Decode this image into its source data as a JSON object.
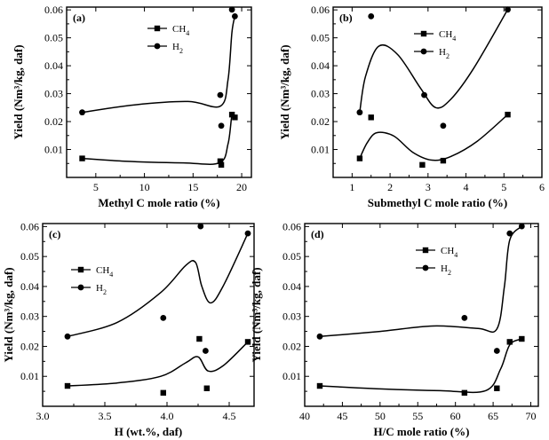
{
  "chart_data": [
    {
      "type": "scatter",
      "panel_label": "(a)",
      "xlabel": "Methyl C mole ratio (%)",
      "ylabel": "Yield",
      "ylabel_unit": "(Nm³/kg, daf)",
      "xlim": [
        2,
        21
      ],
      "ylim": [
        0,
        0.061
      ],
      "xticks": [
        5,
        10,
        15,
        20
      ],
      "xticklabels": [
        "5",
        "10",
        "15",
        "20"
      ],
      "yticks": [
        0.01,
        0.02,
        0.03,
        0.04,
        0.05,
        0.06
      ],
      "yticklabels": [
        "0.01",
        "0.02",
        "0.03",
        "0.04",
        "0.05",
        "0.06"
      ],
      "legend_position": "top-right",
      "series": [
        {
          "name": "CH",
          "sub": "4",
          "marker": "square",
          "points": [
            [
              3.6,
              0.0068
            ],
            [
              17.8,
              0.0058
            ],
            [
              17.9,
              0.0045
            ],
            [
              19.0,
              0.0225
            ],
            [
              19.3,
              0.0215
            ]
          ],
          "curve": [
            [
              3.6,
              0.0068
            ],
            [
              8,
              0.0058
            ],
            [
              14,
              0.0052
            ],
            [
              17.7,
              0.0052
            ],
            [
              18.6,
              0.012
            ],
            [
              19.0,
              0.0222
            ],
            [
              19.3,
              0.0215
            ]
          ]
        },
        {
          "name": "H",
          "sub": "2",
          "marker": "circle",
          "points": [
            [
              3.6,
              0.0233
            ],
            [
              17.8,
              0.0295
            ],
            [
              17.9,
              0.0185
            ],
            [
              19.0,
              0.0601
            ],
            [
              19.3,
              0.0577
            ]
          ],
          "curve": [
            [
              3.6,
              0.0233
            ],
            [
              9,
              0.026
            ],
            [
              14.5,
              0.0272
            ],
            [
              17.8,
              0.0255
            ],
            [
              18.6,
              0.035
            ],
            [
              19.0,
              0.052
            ],
            [
              19.3,
              0.0577
            ]
          ]
        }
      ]
    },
    {
      "type": "scatter",
      "panel_label": "(b)",
      "xlabel": "Submethyl C mole ratio (%)",
      "ylabel": "Yield",
      "ylabel_unit": "(Nm³/kg, daf)",
      "xlim": [
        0.5,
        6
      ],
      "ylim": [
        0,
        0.061
      ],
      "xticks": [
        1,
        2,
        3,
        4,
        5,
        6
      ],
      "xticklabels": [
        "1",
        "2",
        "3",
        "4",
        "5",
        "6"
      ],
      "yticks": [
        0.01,
        0.02,
        0.03,
        0.04,
        0.05,
        0.06
      ],
      "yticklabels": [
        "0.01",
        "0.02",
        "0.03",
        "0.04",
        "0.05",
        "0.06"
      ],
      "legend_position": "top-center",
      "series": [
        {
          "name": "CH",
          "sub": "4",
          "marker": "square",
          "points": [
            [
              1.2,
              0.0068
            ],
            [
              1.5,
              0.0215
            ],
            [
              2.85,
              0.0045
            ],
            [
              3.4,
              0.006
            ],
            [
              5.1,
              0.0225
            ]
          ],
          "curve": [
            [
              1.2,
              0.0068
            ],
            [
              1.4,
              0.0125
            ],
            [
              1.65,
              0.016
            ],
            [
              2.1,
              0.0148
            ],
            [
              2.6,
              0.009
            ],
            [
              3.1,
              0.0062
            ],
            [
              3.6,
              0.0075
            ],
            [
              4.3,
              0.013
            ],
            [
              5.1,
              0.0225
            ]
          ]
        },
        {
          "name": "H",
          "sub": "2",
          "marker": "circle",
          "points": [
            [
              1.2,
              0.0233
            ],
            [
              1.5,
              0.0577
            ],
            [
              2.9,
              0.0295
            ],
            [
              3.4,
              0.0185
            ],
            [
              5.1,
              0.0601
            ]
          ],
          "curve": [
            [
              1.2,
              0.0233
            ],
            [
              1.35,
              0.036
            ],
            [
              1.7,
              0.047
            ],
            [
              2.2,
              0.044
            ],
            [
              2.8,
              0.032
            ],
            [
              3.2,
              0.025
            ],
            [
              3.6,
              0.028
            ],
            [
              4.2,
              0.039
            ],
            [
              5.1,
              0.0601
            ]
          ]
        }
      ]
    },
    {
      "type": "scatter",
      "panel_label": "(c)",
      "xlabel": "H (wt.%, daf)",
      "ylabel": "Yield",
      "ylabel_unit": "(Nm³/kg, daf)",
      "xlim": [
        3.0,
        4.7
      ],
      "ylim": [
        0,
        0.061
      ],
      "xticks": [
        3.0,
        3.5,
        4.0,
        4.5
      ],
      "xticklabels": [
        "3.0",
        "3.5",
        "4.0",
        "4.5"
      ],
      "yticks": [
        0.01,
        0.02,
        0.03,
        0.04,
        0.05,
        0.06
      ],
      "yticklabels": [
        "0.01",
        "0.02",
        "0.03",
        "0.04",
        "0.05",
        "0.06"
      ],
      "legend_position": "top-left",
      "series": [
        {
          "name": "CH",
          "sub": "4",
          "marker": "square",
          "points": [
            [
              3.2,
              0.0068
            ],
            [
              3.97,
              0.0045
            ],
            [
              4.26,
              0.0225
            ],
            [
              4.32,
              0.006
            ],
            [
              4.65,
              0.0215
            ]
          ],
          "curve": [
            [
              3.2,
              0.0068
            ],
            [
              3.6,
              0.0078
            ],
            [
              3.95,
              0.01
            ],
            [
              4.15,
              0.0145
            ],
            [
              4.25,
              0.0165
            ],
            [
              4.33,
              0.0118
            ],
            [
              4.45,
              0.0135
            ],
            [
              4.65,
              0.0215
            ]
          ]
        },
        {
          "name": "H",
          "sub": "2",
          "marker": "circle",
          "points": [
            [
              3.2,
              0.0233
            ],
            [
              3.97,
              0.0295
            ],
            [
              4.27,
              0.0601
            ],
            [
              4.31,
              0.0185
            ],
            [
              4.65,
              0.0577
            ]
          ],
          "curve": [
            [
              3.2,
              0.0233
            ],
            [
              3.6,
              0.028
            ],
            [
              3.95,
              0.038
            ],
            [
              4.15,
              0.047
            ],
            [
              4.23,
              0.048
            ],
            [
              4.28,
              0.04
            ],
            [
              4.35,
              0.0345
            ],
            [
              4.45,
              0.04
            ],
            [
              4.65,
              0.0577
            ]
          ]
        }
      ]
    },
    {
      "type": "scatter",
      "panel_label": "(d)",
      "xlabel": "H/C mole ratio (%)",
      "ylabel": "Yield",
      "ylabel_unit": "(Nm³/kg, daf)",
      "xlim": [
        40,
        71
      ],
      "ylim": [
        0,
        0.061
      ],
      "xticks": [
        40,
        45,
        50,
        55,
        60,
        65,
        70
      ],
      "xticklabels": [
        "40",
        "45",
        "50",
        "55",
        "60",
        "65",
        "70"
      ],
      "yticks": [
        0.01,
        0.02,
        0.03,
        0.04,
        0.05,
        0.06
      ],
      "yticklabels": [
        "0.01",
        "0.02",
        "0.03",
        "0.04",
        "0.05",
        "0.06"
      ],
      "legend_position": "top-left",
      "series": [
        {
          "name": "CH",
          "sub": "4",
          "marker": "square",
          "points": [
            [
              42,
              0.0068
            ],
            [
              61.2,
              0.0045
            ],
            [
              65.5,
              0.006
            ],
            [
              67.2,
              0.0215
            ],
            [
              68.8,
              0.0225
            ]
          ],
          "curve": [
            [
              42,
              0.0068
            ],
            [
              50,
              0.0058
            ],
            [
              58,
              0.0052
            ],
            [
              64,
              0.0052
            ],
            [
              66,
              0.0125
            ],
            [
              67.2,
              0.0205
            ],
            [
              68.8,
              0.0225
            ]
          ]
        },
        {
          "name": "H",
          "sub": "2",
          "marker": "circle",
          "points": [
            [
              42,
              0.0233
            ],
            [
              61.2,
              0.0295
            ],
            [
              65.5,
              0.0185
            ],
            [
              67.2,
              0.0577
            ],
            [
              68.8,
              0.0601
            ]
          ],
          "curve": [
            [
              42,
              0.0233
            ],
            [
              50,
              0.025
            ],
            [
              57,
              0.0268
            ],
            [
              63,
              0.026
            ],
            [
              65.5,
              0.0258
            ],
            [
              66.5,
              0.04
            ],
            [
              67.2,
              0.0555
            ],
            [
              68.8,
              0.0601
            ]
          ]
        }
      ]
    }
  ]
}
